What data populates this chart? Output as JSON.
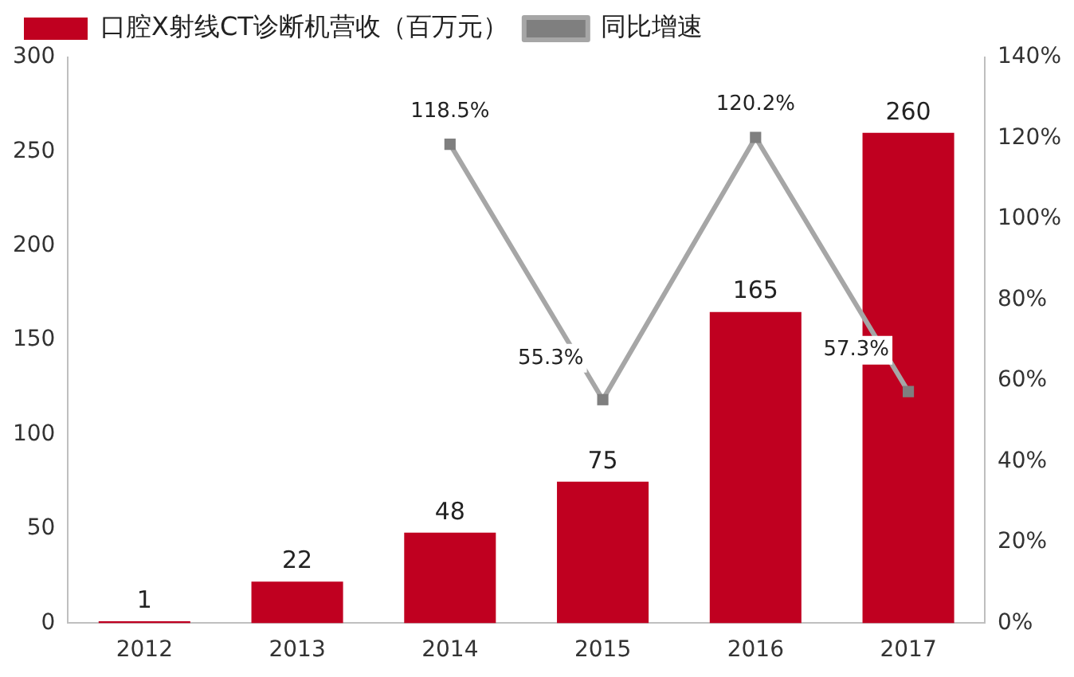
{
  "chart_data": {
    "type": "bar",
    "categories": [
      "2012",
      "2013",
      "2014",
      "2015",
      "2016",
      "2017"
    ],
    "series": [
      {
        "name": "口腔X射线CT诊断机营收（百万元）",
        "color": "#c00020",
        "values": [
          1,
          22,
          48,
          75,
          165,
          260
        ],
        "value_labels": [
          "1",
          "22",
          "48",
          "75",
          "165",
          "260"
        ]
      },
      {
        "name": "同比增速",
        "type": "line",
        "axis": "y2",
        "color": "#a6a6a6",
        "values": [
          null,
          null,
          118.5,
          55.3,
          120.2,
          57.3
        ],
        "value_labels": [
          null,
          null,
          "118.5%",
          "55.3%",
          "120.2%",
          "57.3%"
        ]
      }
    ],
    "ylim": [
      0,
      300
    ],
    "yticks": [
      0,
      50,
      100,
      150,
      200,
      250,
      300
    ],
    "y2lim": [
      0,
      140
    ],
    "y2ticks": [
      {
        "value": 0,
        "label": "0%"
      },
      {
        "value": 20,
        "label": "20%"
      },
      {
        "value": 40,
        "label": "40%"
      },
      {
        "value": 60,
        "label": "60%"
      },
      {
        "value": 80,
        "label": "80%"
      },
      {
        "value": 100,
        "label": "100%"
      },
      {
        "value": 120,
        "label": "120%"
      },
      {
        "value": 140,
        "label": "140%"
      }
    ],
    "grid": false,
    "legend": "top",
    "marker": "square",
    "line_style": "solid"
  }
}
